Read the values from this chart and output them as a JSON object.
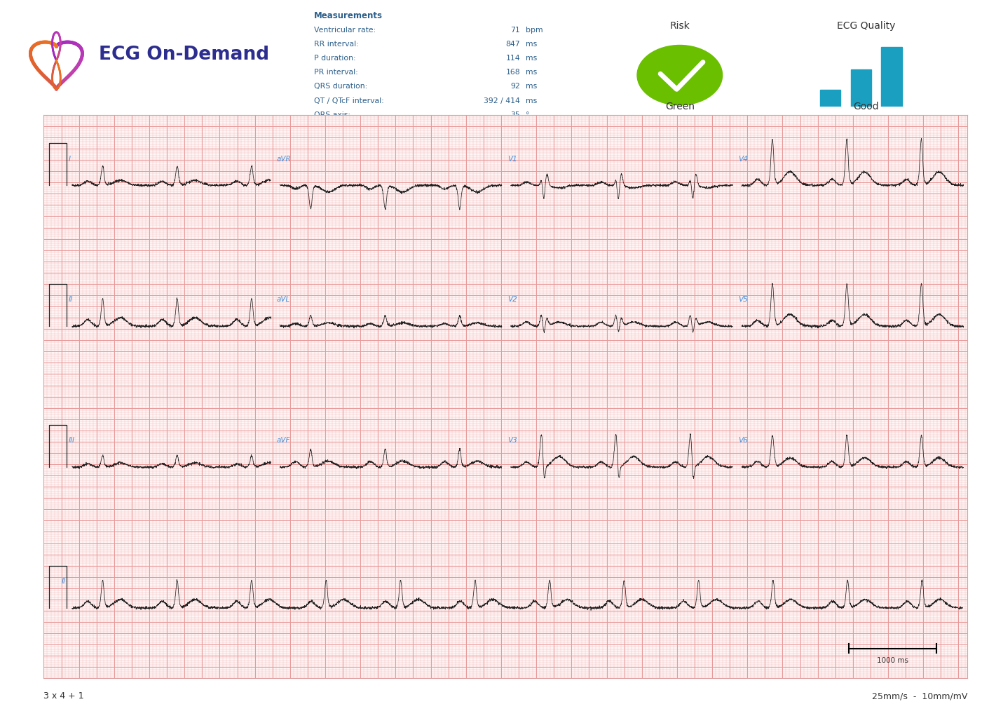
{
  "bg_color": "#ffffff",
  "ecg_paper_bg": "#fff5f5",
  "grid_minor_color": "#f2b8b8",
  "grid_major_color": "#e89898",
  "header_bg": "#ffffff",
  "title_text": "ECG On-Demand",
  "measurements_title": "Measurements",
  "measurements": [
    [
      "Ventricular rate:",
      "71",
      "bpm"
    ],
    [
      "RR interval:",
      "847",
      "ms"
    ],
    [
      "P duration:",
      "114",
      "ms"
    ],
    [
      "PR interval:",
      "168",
      "ms"
    ],
    [
      "QRS duration:",
      "92",
      "ms"
    ],
    [
      "QT / QTcF interval:",
      "392 / 414",
      "ms"
    ],
    [
      "QRS axis:",
      "35",
      "°"
    ]
  ],
  "risk_label": "Risk",
  "ecg_quality_label": "ECG Quality",
  "green_label": "Green",
  "good_label": "Good",
  "footer_left": "3 x 4 + 1",
  "footer_right": "25mm/s  -  10mm/mV",
  "scale_label": "1000 ms",
  "ecg_line_color": "#222222",
  "lead_label_color": "#4a90d9",
  "text_color": "#2c5f8a",
  "title_color": "#2d2d8f",
  "green_color": "#6abf00",
  "bar_color": "#1a9fc0",
  "box_bg": "#e8e8e8",
  "box_edge": "#cccccc"
}
